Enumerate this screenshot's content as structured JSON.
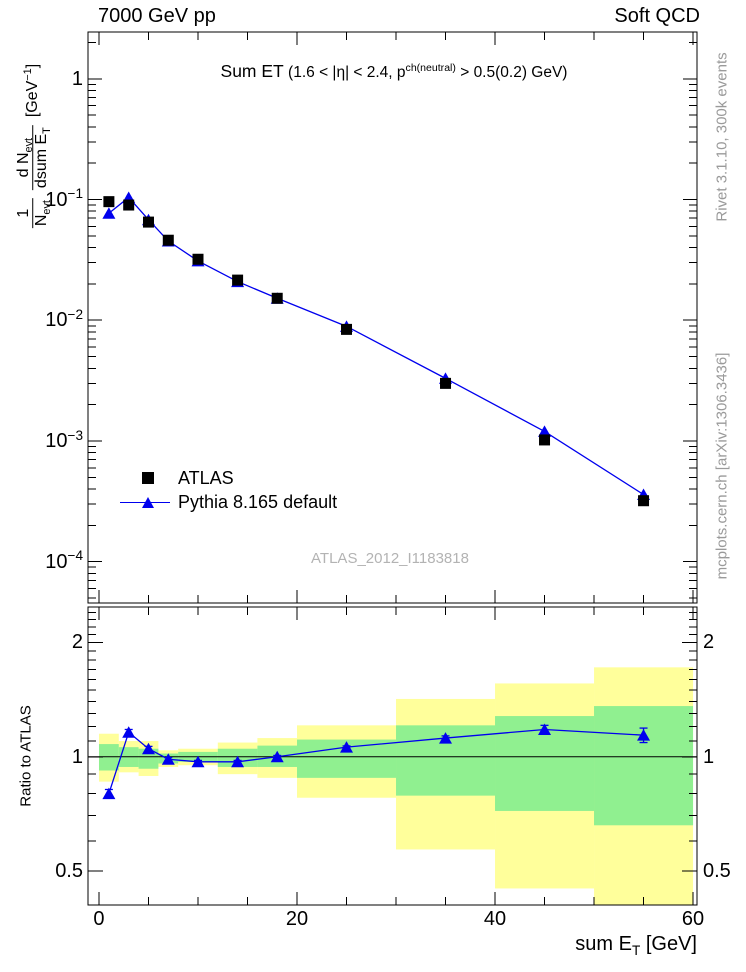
{
  "header": {
    "left": "7000 GeV pp",
    "right": "Soft QCD"
  },
  "watermark": "ATLAS_2012_I1183818",
  "side": {
    "rivet": "Rivet 3.1.10,  300k events",
    "mcplots": "mcplots.cern.ch [arXiv:1306.3436]"
  },
  "ratio_panel": {
    "ylabel": "Ratio to ATLAS"
  },
  "ylabel": {
    "one": "1",
    "nevt_base": "N",
    "evt_sub": "evt",
    "dn_base": "d N",
    "evt_sub2": "evt",
    "dsum_base": "dsum E",
    "t_sub": "T"
  },
  "rich": {
    "title": [
      [
        "big",
        "Sum ET"
      ],
      [
        "t",
        "  (1.6 < |η| < 2.4, p"
      ],
      [
        "sup",
        "ch(neutral)"
      ],
      [
        "t",
        " > 0.5(0.2) GeV)"
      ]
    ],
    "units": [
      [
        "t",
        "[GeV"
      ],
      [
        "sup",
        "−1"
      ],
      [
        "t",
        "]"
      ]
    ],
    "xlabel": [
      [
        "t",
        "sum E"
      ],
      [
        "sub",
        "T"
      ],
      [
        "t",
        " [GeV]"
      ]
    ]
  },
  "legend": [
    {
      "label": "ATLAS",
      "marker": "square",
      "color": "#000000"
    },
    {
      "label": "Pythia 8.165 default",
      "marker": "triangle-line",
      "color": "#0000ee"
    }
  ],
  "colors": {
    "blue": "#0000ee",
    "green_band": "#90f090",
    "yellow_band": "#ffff9b",
    "gray_text": "#9a9a9a",
    "watermark": "#b3b3b3"
  },
  "axes": {
    "main_y_ticks": [
      {
        "v": 1,
        "tokens": [
          [
            "t",
            "1"
          ]
        ]
      },
      {
        "v": 0.1,
        "tokens": [
          [
            "t",
            "10"
          ],
          [
            "sup",
            "−1"
          ]
        ]
      },
      {
        "v": 0.01,
        "tokens": [
          [
            "t",
            "10"
          ],
          [
            "sup",
            "−2"
          ]
        ]
      },
      {
        "v": 0.001,
        "tokens": [
          [
            "t",
            "10"
          ],
          [
            "sup",
            "−3"
          ]
        ]
      },
      {
        "v": 0.0001,
        "tokens": [
          [
            "t",
            "10"
          ],
          [
            "sup",
            "−4"
          ]
        ]
      }
    ],
    "ratio_y_ticks": [
      {
        "v": 2,
        "label": "2"
      },
      {
        "v": 1,
        "label": "1"
      },
      {
        "v": 0.5,
        "label": "0.5"
      }
    ],
    "x_ticks": [
      {
        "v": 0,
        "label": "0"
      },
      {
        "v": 20,
        "label": "20"
      },
      {
        "v": 40,
        "label": "40"
      },
      {
        "v": 60,
        "label": "60"
      }
    ],
    "x_minor_step": 5
  },
  "chart_data": [
    {
      "type": "line",
      "title": "Sum ET (1.6 < |eta| < 2.4, p^ch(neutral) > 0.5(0.2) GeV)",
      "xlabel": "sum E_T [GeV]",
      "ylabel": "1/N_evt dN_evt/dsum E_T [GeV^-1]",
      "x_scale": "linear",
      "y_scale": "log",
      "xlim": [
        -1.11,
        60.4
      ],
      "ylim": [
        4.55e-05,
        2.44
      ],
      "x": [
        1,
        3,
        5,
        7,
        10,
        14,
        18,
        25,
        35,
        45,
        55
      ],
      "bin_edges": [
        0,
        2,
        4,
        6,
        8,
        12,
        16,
        20,
        30,
        40,
        50,
        60
      ],
      "series": [
        {
          "name": "ATLAS",
          "marker": "square",
          "color": "#000000",
          "line": false,
          "values": [
            0.096,
            0.09,
            0.065,
            0.046,
            0.032,
            0.0215,
            0.0152,
            0.0084,
            0.003,
            0.00102,
            0.00032
          ]
        },
        {
          "name": "Pythia 8.165 default",
          "marker": "triangle",
          "color": "#0000ee",
          "line": true,
          "values": [
            0.077,
            0.104,
            0.068,
            0.0453,
            0.031,
            0.0209,
            0.0152,
            0.0089,
            0.0033,
            0.0012,
            0.00036
          ]
        }
      ],
      "legend_position": "lower-left",
      "grid": false
    },
    {
      "type": "ratio",
      "ylabel": "Ratio to ATLAS",
      "y_scale": "log",
      "ylim": [
        0.407,
        2.48
      ],
      "reference_line": 1.0,
      "x": [
        1,
        3,
        5,
        7,
        10,
        14,
        18,
        25,
        35,
        45,
        55
      ],
      "ratio": [
        0.8,
        1.16,
        1.05,
        0.985,
        0.97,
        0.97,
        1.0,
        1.06,
        1.12,
        1.18,
        1.14
      ],
      "ratio_err": [
        0.02,
        0.02,
        0.015,
        0.01,
        0.008,
        0.008,
        0.008,
        0.008,
        0.015,
        0.03,
        0.05
      ],
      "bands": [
        {
          "x0": 0,
          "x1": 2,
          "green": [
            0.92,
            1.08
          ],
          "yellow": [
            0.86,
            1.15
          ]
        },
        {
          "x0": 2,
          "x1": 4,
          "green": [
            0.94,
            1.06
          ],
          "yellow": [
            0.91,
            1.1
          ]
        },
        {
          "x0": 4,
          "x1": 6,
          "green": [
            0.93,
            1.05
          ],
          "yellow": [
            0.89,
            1.1
          ]
        },
        {
          "x0": 6,
          "x1": 8,
          "green": [
            0.96,
            1.02
          ],
          "yellow": [
            0.94,
            1.04
          ]
        },
        {
          "x0": 8,
          "x1": 12,
          "green": [
            0.97,
            1.03
          ],
          "yellow": [
            0.95,
            1.05
          ]
        },
        {
          "x0": 12,
          "x1": 16,
          "green": [
            0.94,
            1.05
          ],
          "yellow": [
            0.9,
            1.09
          ]
        },
        {
          "x0": 16,
          "x1": 20,
          "green": [
            0.94,
            1.07
          ],
          "yellow": [
            0.88,
            1.12
          ]
        },
        {
          "x0": 20,
          "x1": 30,
          "green": [
            0.88,
            1.11
          ],
          "yellow": [
            0.78,
            1.21
          ]
        },
        {
          "x0": 30,
          "x1": 40,
          "green": [
            0.79,
            1.21
          ],
          "yellow": [
            0.57,
            1.42
          ]
        },
        {
          "x0": 40,
          "x1": 50,
          "green": [
            0.72,
            1.28
          ],
          "yellow": [
            0.45,
            1.56
          ]
        },
        {
          "x0": 50,
          "x1": 60,
          "green": [
            0.66,
            1.36
          ],
          "yellow": [
            0.38,
            1.72
          ]
        }
      ]
    }
  ]
}
